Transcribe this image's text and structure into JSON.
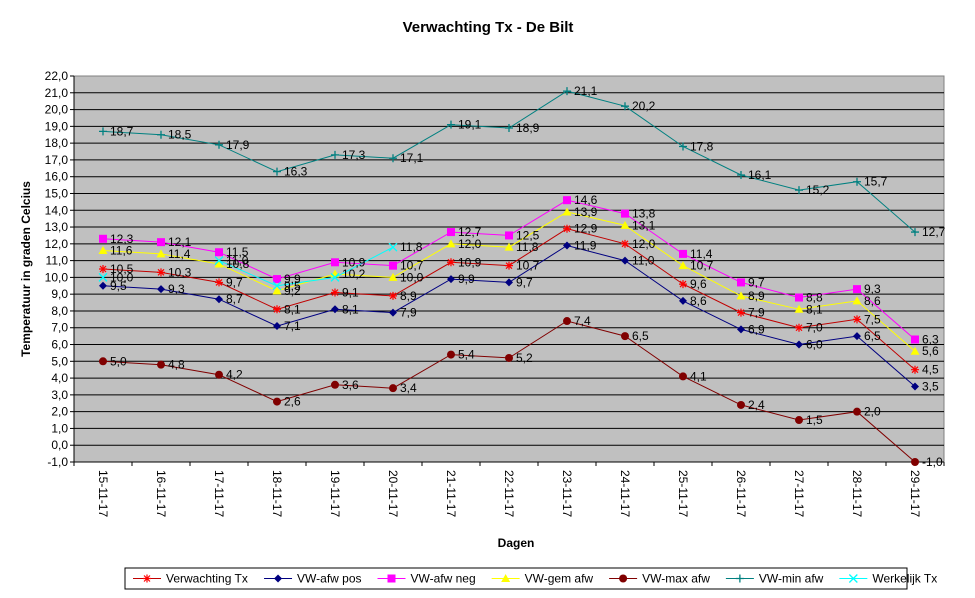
{
  "chart_data": {
    "type": "line",
    "title": "Verwachting Tx - De Bilt",
    "xlabel": "Dagen",
    "ylabel": "Temperatuur in graden Celcius",
    "ylim": [
      -1.0,
      22.0
    ],
    "ystep": 1.0,
    "yticks": [
      "-1,0",
      "0,0",
      "1,0",
      "2,0",
      "3,0",
      "4,0",
      "5,0",
      "6,0",
      "7,0",
      "8,0",
      "9,0",
      "10,0",
      "11,0",
      "12,0",
      "13,0",
      "14,0",
      "15,0",
      "16,0",
      "17,0",
      "18,0",
      "19,0",
      "20,0",
      "21,0",
      "22,0"
    ],
    "grid": true,
    "legend_position": "bottom",
    "plot_background": "#c0c0c0",
    "categories": [
      "15-11-17",
      "16-11-17",
      "17-11-17",
      "18-11-17",
      "19-11-17",
      "20-11-17",
      "21-11-17",
      "22-11-17",
      "23-11-17",
      "24-11-17",
      "25-11-17",
      "26-11-17",
      "27-11-17",
      "28-11-17",
      "29-11-17"
    ],
    "series": [
      {
        "name": "Verwachting Tx",
        "color": "#ff0000",
        "line_color": "#c00000",
        "marker": "asterisk",
        "values": [
          10.5,
          10.3,
          9.7,
          8.1,
          9.1,
          8.9,
          10.9,
          10.7,
          12.9,
          12.0,
          9.6,
          7.9,
          7.0,
          7.5,
          4.5
        ],
        "labels": [
          "10,5",
          "10,3",
          "9,7",
          "8,1",
          "9,1",
          "8,9",
          "10,9",
          "10,7",
          "12,9",
          "12,0",
          "9,6",
          "7,9",
          "7,0",
          "7,5",
          "4,5"
        ]
      },
      {
        "name": "VW-afw pos",
        "color": "#000080",
        "line_color": "#000080",
        "marker": "diamond",
        "values": [
          9.5,
          9.3,
          8.7,
          7.1,
          8.1,
          7.9,
          9.9,
          9.7,
          11.9,
          11.0,
          8.6,
          6.9,
          6.0,
          6.5,
          3.5
        ],
        "labels": [
          "9,5",
          "9,3",
          "8,7",
          "7,1",
          "8,1",
          "7,9",
          "9,9",
          "9,7",
          "11,9",
          "11,0",
          "8,6",
          "6,9",
          "6,0",
          "6,5",
          "3,5"
        ]
      },
      {
        "name": "VW-afw neg",
        "color": "#ff00ff",
        "line_color": "#ff00ff",
        "marker": "square",
        "values": [
          12.3,
          12.1,
          11.5,
          9.9,
          10.9,
          10.7,
          12.7,
          12.5,
          14.6,
          13.8,
          11.4,
          9.7,
          8.8,
          9.3,
          6.3
        ],
        "labels": [
          "12,3",
          "12,1",
          "11,5",
          "9,9",
          "10,9",
          "10,7",
          "12,7",
          "12,5",
          "14,6",
          "13,8",
          "11,4",
          "9,7",
          "8,8",
          "9,3",
          "6,3"
        ]
      },
      {
        "name": "VW-gem afw",
        "color": "#ffff00",
        "line_color": "#ffff00",
        "marker": "triangle",
        "values": [
          11.6,
          11.4,
          10.8,
          9.2,
          10.2,
          10.0,
          12.0,
          11.8,
          13.9,
          13.1,
          10.7,
          8.9,
          8.1,
          8.6,
          5.6
        ],
        "labels": [
          "11,6",
          "11,4",
          "10,8",
          "9,2",
          "10,2",
          "10,0",
          "12,0",
          "11,8",
          "13,9",
          "13,1",
          "10,7",
          "8,9",
          "8,1",
          "8,6",
          "5,6"
        ]
      },
      {
        "name": "VW-max afw",
        "color": "#800000",
        "line_color": "#800000",
        "marker": "circle",
        "values": [
          5.0,
          4.8,
          4.2,
          2.6,
          3.6,
          3.4,
          5.4,
          5.2,
          7.4,
          6.5,
          4.1,
          2.4,
          1.5,
          2.0,
          -1.0
        ],
        "labels": [
          "5,0",
          "4,8",
          "4,2",
          "2,6",
          "3,6",
          "3,4",
          "5,4",
          "5,2",
          "7,4",
          "6,5",
          "4,1",
          "2,4",
          "1,5",
          "2,0",
          "-1,0"
        ]
      },
      {
        "name": "VW-min afw",
        "color": "#008080",
        "line_color": "#008080",
        "marker": "plus",
        "values": [
          18.7,
          18.5,
          17.9,
          16.3,
          17.3,
          17.1,
          19.1,
          18.9,
          21.1,
          20.2,
          17.8,
          16.1,
          15.2,
          15.7,
          12.7
        ],
        "labels": [
          "18,7",
          "18,5",
          "17,9",
          "16,3",
          "17,3",
          "17,1",
          "19,1",
          "18,9",
          "21,1",
          "20,2",
          "17,8",
          "16,1",
          "15,2",
          "15,7",
          "12,7"
        ]
      },
      {
        "name": "Werkelijk Tx",
        "color": "#00ffff",
        "line_color": "#00ffff",
        "marker": "x",
        "values": [
          10.0,
          null,
          11.0,
          9.5,
          10.0,
          11.8,
          null,
          null,
          null,
          null,
          null,
          null,
          null,
          null,
          null
        ],
        "labels": [
          "10,0",
          "",
          "11,0",
          "9,5",
          "",
          "11,8",
          "",
          "",
          "",
          "",
          "",
          "",
          "",
          "",
          ""
        ]
      }
    ]
  }
}
